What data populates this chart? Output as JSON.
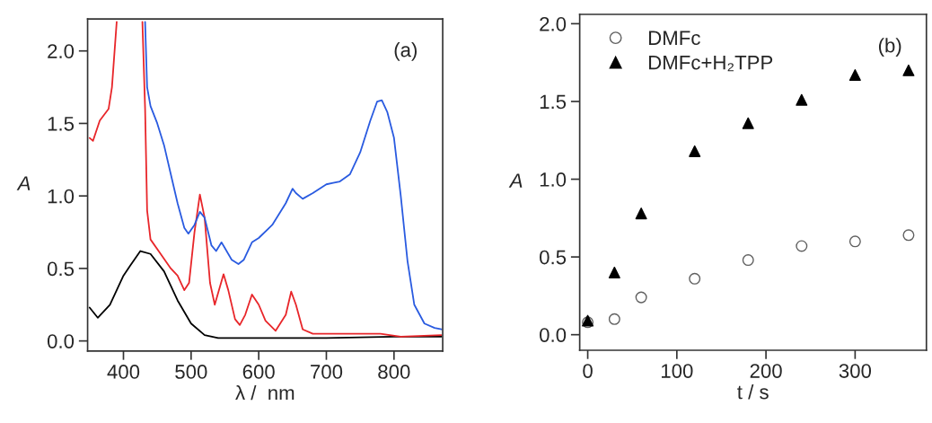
{
  "chart_data": [
    {
      "type": "line",
      "xlabel": "λ /  nm",
      "ylabel": "A",
      "annotations": [
        "(a)"
      ],
      "xlim": [
        347,
        872
      ],
      "ylim": [
        -0.07,
        2.22
      ],
      "xticks": [
        400,
        500,
        600,
        700,
        800
      ],
      "yticks": [
        {
          "value": 0,
          "label": "0.0"
        },
        {
          "value": 0.5,
          "label": "0.5"
        },
        {
          "value": 1,
          "label": "1.0"
        },
        {
          "value": 1.5,
          "label": "1.5"
        },
        {
          "value": 2,
          "label": "2.0"
        }
      ],
      "grid": false,
      "legend": false,
      "series": [
        {
          "color": "#000000",
          "x": [
            350,
            362,
            380,
            400,
            410,
            425,
            440,
            460,
            480,
            500,
            520,
            540,
            600,
            700,
            800,
            870
          ],
          "values": [
            0.23,
            0.16,
            0.25,
            0.45,
            0.52,
            0.62,
            0.6,
            0.48,
            0.28,
            0.12,
            0.04,
            0.02,
            0.02,
            0.02,
            0.03,
            0.03
          ]
        },
        {
          "color": "#e8262a",
          "x": [
            350,
            355,
            365,
            378,
            383,
            390,
            410,
            428,
            432,
            435,
            440,
            455,
            470,
            480,
            490,
            497,
            505,
            513,
            520,
            528,
            535,
            548,
            555,
            565,
            572,
            580,
            590,
            600,
            610,
            625,
            640,
            648,
            655,
            665,
            680,
            750,
            780,
            810,
            870
          ],
          "values": [
            1.4,
            1.38,
            1.52,
            1.6,
            1.75,
            2.2,
            null,
            2.2,
            1.6,
            0.9,
            0.7,
            0.6,
            0.5,
            0.45,
            0.35,
            0.4,
            0.75,
            1.01,
            0.85,
            0.4,
            0.25,
            0.46,
            0.35,
            0.15,
            0.11,
            0.18,
            0.32,
            0.25,
            0.14,
            0.07,
            0.18,
            0.34,
            0.25,
            0.08,
            0.05,
            0.05,
            0.05,
            0.03,
            0.04
          ]
        },
        {
          "color": "#2a5be0",
          "x": [
            432,
            435,
            440,
            450,
            460,
            470,
            480,
            490,
            496,
            505,
            513,
            520,
            530,
            537,
            545,
            550,
            560,
            570,
            578,
            590,
            600,
            620,
            640,
            650,
            655,
            665,
            680,
            700,
            710,
            720,
            735,
            750,
            765,
            775,
            782,
            790,
            800,
            810,
            820,
            830,
            845,
            860,
            870
          ],
          "values": [
            2.2,
            1.75,
            1.62,
            1.5,
            1.35,
            1.15,
            0.95,
            0.78,
            0.74,
            0.8,
            0.89,
            0.85,
            0.66,
            0.62,
            0.68,
            0.64,
            0.56,
            0.53,
            0.56,
            0.68,
            0.71,
            0.8,
            0.95,
            1.05,
            1.02,
            0.98,
            1.02,
            1.08,
            1.09,
            1.1,
            1.15,
            1.3,
            1.52,
            1.65,
            1.66,
            1.58,
            1.4,
            1.0,
            0.55,
            0.25,
            0.12,
            0.09,
            0.08
          ]
        }
      ]
    },
    {
      "type": "scatter",
      "xlabel": "t / s",
      "ylabel": "A",
      "annotations": [
        "(b)"
      ],
      "xlim": [
        -9,
        380
      ],
      "ylim": [
        -0.1,
        2.06
      ],
      "xticks": [
        0,
        100,
        200,
        300
      ],
      "yticks": [
        {
          "value": 0,
          "label": "0.0"
        },
        {
          "value": 0.5,
          "label": "0.5"
        },
        {
          "value": 1,
          "label": "1.0"
        },
        {
          "value": 1.5,
          "label": "1.5"
        },
        {
          "value": 2,
          "label": "2.0"
        }
      ],
      "grid": false,
      "legend": "top left",
      "series": [
        {
          "name": "DMFc",
          "marker": "circle",
          "color": "#606060",
          "x": [
            0,
            30,
            60,
            120,
            180,
            240,
            300,
            360
          ],
          "values": [
            0.08,
            0.1,
            0.24,
            0.36,
            0.48,
            0.57,
            0.6,
            0.64
          ]
        },
        {
          "name": "DMFc+H₂TPP",
          "marker": "triangle",
          "color": "#000000",
          "x": [
            0,
            30,
            60,
            120,
            180,
            240,
            300,
            360
          ],
          "values": [
            0.09,
            0.4,
            0.78,
            1.18,
            1.36,
            1.51,
            1.67,
            1.7
          ]
        }
      ]
    }
  ]
}
